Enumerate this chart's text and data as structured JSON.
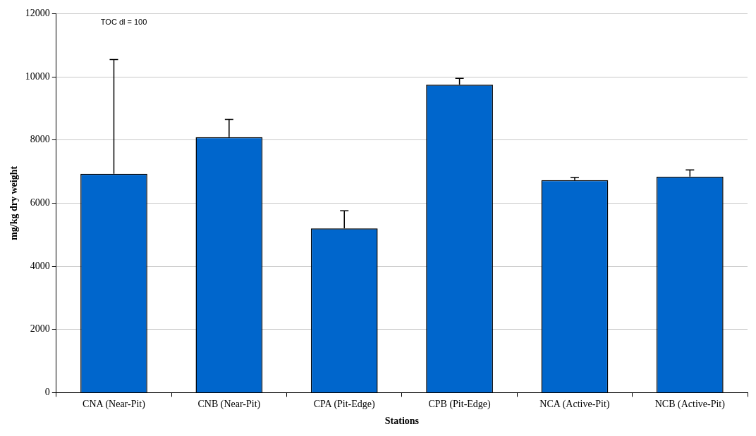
{
  "chart_data": {
    "type": "bar",
    "xlabel": "Stations",
    "ylabel": "mg/kg dry weight",
    "categories": [
      "CNA (Near-Pit)",
      "CNB (Near-Pit)",
      "CPA (Pit-Edge)",
      "CPB (Pit-Edge)",
      "NCA (Active-Pit)",
      "NCB (Active-Pit)"
    ],
    "values": [
      6930,
      8090,
      5200,
      9750,
      6730,
      6840
    ],
    "errors": [
      [
        6930,
        10550
      ],
      [
        8090,
        8650
      ],
      [
        5200,
        5760
      ],
      [
        9750,
        9950
      ],
      [
        6730,
        6810
      ],
      [
        6840,
        7050
      ]
    ],
    "color": "#0066cc",
    "ylim": [
      0,
      12000
    ],
    "yticks": [
      0,
      2000,
      4000,
      6000,
      8000,
      10000,
      12000
    ],
    "grid": "y",
    "annotations": [
      "TOC dl = 100"
    ]
  }
}
